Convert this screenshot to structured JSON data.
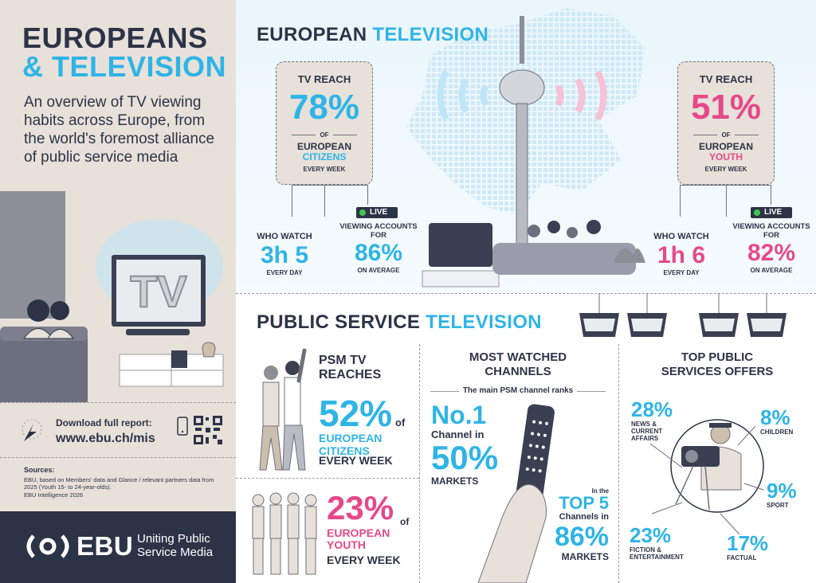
{
  "left": {
    "headline_line1": "EUROPEANS",
    "headline_line2": "& TELEVISION",
    "intro": "An overview of TV viewing habits across Europe, from the world's foremost alliance of public service media",
    "tv_screen_text": "TV",
    "download_label": "Download full report:",
    "download_url": "www.ebu.ch/mis",
    "sources_heading": "Sources:",
    "sources_text": "EBU, based on Members' data and Glance / relevant partners data from 2025 (Youth 15- to 24-year-olds).",
    "sources_credit": "EBU Intelligence 2026",
    "footer_brand": "EBU",
    "footer_tagline_1": "Uniting Public",
    "footer_tagline_2": "Service Media"
  },
  "european_tv": {
    "title_part1": "EUROPEAN",
    "title_part2": "TELEVISION",
    "citizens": {
      "heading": "TV REACH",
      "percent": "78%",
      "of": "OF",
      "group_line1": "EUROPEAN",
      "group_line2": "CITIZENS",
      "frequency": "EVERY WEEK",
      "who_watch_label": "WHO WATCH",
      "who_watch_value": "3h 5",
      "who_watch_sub": "EVERY DAY",
      "live_label": "LIVE",
      "viewing_label": "VIEWING ACCOUNTS FOR",
      "viewing_value": "86%",
      "viewing_sub": "ON AVERAGE"
    },
    "youth": {
      "heading": "TV REACH",
      "percent": "51%",
      "of": "OF",
      "group_line1": "EUROPEAN",
      "group_line2": "YOUTH",
      "frequency": "EVERY WEEK",
      "who_watch_label": "WHO WATCH",
      "who_watch_value": "1h 6",
      "who_watch_sub": "EVERY DAY",
      "live_label": "LIVE",
      "viewing_label": "VIEWING ACCOUNTS FOR",
      "viewing_value": "82%",
      "viewing_sub": "ON AVERAGE"
    }
  },
  "psm_tv": {
    "title_part1": "PUBLIC SERVICE",
    "title_part2": "TELEVISION",
    "reaches": {
      "heading_line1": "PSM TV",
      "heading_line2": "REACHES",
      "citizens_percent": "52%",
      "of1": "of",
      "citizens_line1": "EUROPEAN",
      "citizens_line2": "CITIZENS",
      "citizens_frequency": "EVERY WEEK",
      "youth_percent": "23%",
      "of2": "of",
      "youth_line1": "EUROPEAN",
      "youth_line2": "YOUTH",
      "youth_frequency": "EVERY WEEK"
    },
    "most_watched": {
      "heading_line1": "MOST WATCHED",
      "heading_line2": "CHANNELS",
      "subheading": "The main PSM channel ranks",
      "rank1_big": "No.1",
      "rank1_line": "Channel in",
      "rank1_percent": "50%",
      "rank1_markets": "MARKETS",
      "top5_inthe": "In the",
      "top5_big": "TOP 5",
      "top5_line": "Channels in",
      "top5_percent": "86%",
      "top5_markets": "MARKETS"
    },
    "top_offers": {
      "heading_line1": "TOP PUBLIC",
      "heading_line2": "SERVICES OFFERS",
      "items": [
        {
          "percent": "28%",
          "label_line1": "NEWS &",
          "label_line2": "CURRENT",
          "label_line3": "AFFAIRS"
        },
        {
          "percent": "8%",
          "label_line1": "CHILDREN"
        },
        {
          "percent": "9%",
          "label_line1": "SPORT"
        },
        {
          "percent": "23%",
          "label_line1": "FICTION &",
          "label_line2": "ENTERTAINMENT"
        },
        {
          "percent": "17%",
          "label_line1": "FACTUAL"
        }
      ]
    }
  },
  "colors": {
    "navy": "#2d3347",
    "blue": "#2fb4e6",
    "pink": "#e6498a",
    "beige": "#e7e1da",
    "live_green": "#3ec74e"
  }
}
